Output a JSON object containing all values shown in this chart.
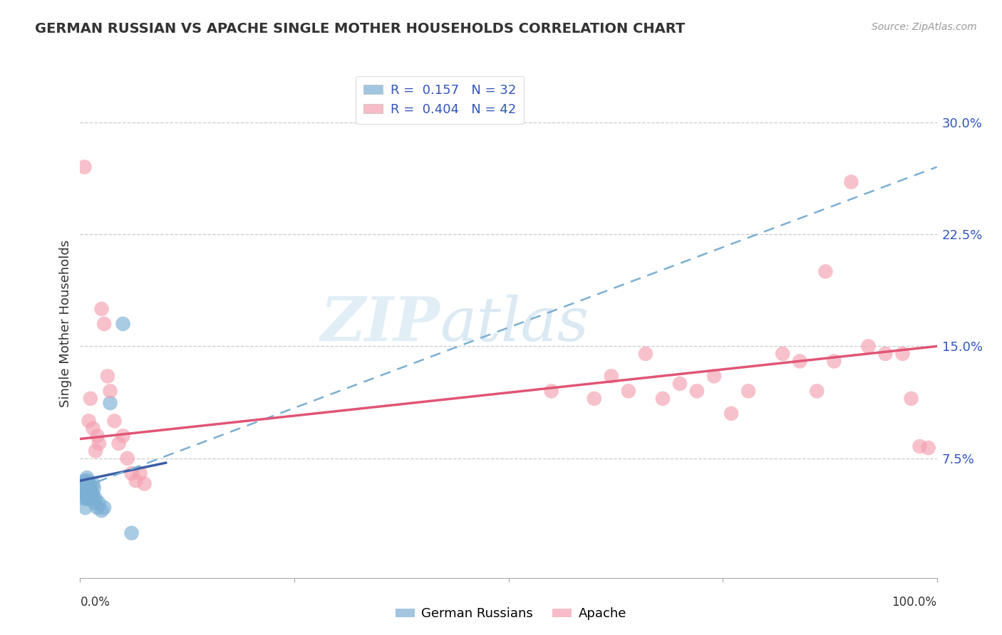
{
  "title": "GERMAN RUSSIAN VS APACHE SINGLE MOTHER HOUSEHOLDS CORRELATION CHART",
  "source": "Source: ZipAtlas.com",
  "ylabel": "Single Mother Households",
  "legend_label1": "German Russians",
  "legend_label2": "Apache",
  "legend_r1": "R =  0.157",
  "legend_n1": "N = 32",
  "legend_r2": "R =  0.404",
  "legend_n2": "N = 42",
  "xlim": [
    0.0,
    1.0
  ],
  "ylim": [
    -0.005,
    0.335
  ],
  "yticks": [
    0.075,
    0.15,
    0.225,
    0.3
  ],
  "ytick_labels": [
    "7.5%",
    "15.0%",
    "22.5%",
    "30.0%"
  ],
  "background_color": "#ffffff",
  "grid_color": "#cccccc",
  "blue_color": "#7bafd4",
  "pink_color": "#f4a0b0",
  "blue_line_color": "#3b5ea6",
  "pink_line_color": "#e05575",
  "blue_scatter": [
    [
      0.002,
      0.058
    ],
    [
      0.003,
      0.052
    ],
    [
      0.004,
      0.055
    ],
    [
      0.005,
      0.06
    ],
    [
      0.005,
      0.048
    ],
    [
      0.006,
      0.055
    ],
    [
      0.006,
      0.042
    ],
    [
      0.007,
      0.058
    ],
    [
      0.007,
      0.05
    ],
    [
      0.008,
      0.062
    ],
    [
      0.008,
      0.048
    ],
    [
      0.009,
      0.06
    ],
    [
      0.009,
      0.052
    ],
    [
      0.01,
      0.055
    ],
    [
      0.01,
      0.048
    ],
    [
      0.011,
      0.058
    ],
    [
      0.011,
      0.05
    ],
    [
      0.012,
      0.055
    ],
    [
      0.013,
      0.048
    ],
    [
      0.014,
      0.052
    ],
    [
      0.015,
      0.058
    ],
    [
      0.015,
      0.05
    ],
    [
      0.016,
      0.055
    ],
    [
      0.017,
      0.045
    ],
    [
      0.018,
      0.048
    ],
    [
      0.02,
      0.042
    ],
    [
      0.022,
      0.045
    ],
    [
      0.025,
      0.04
    ],
    [
      0.028,
      0.042
    ],
    [
      0.035,
      0.112
    ],
    [
      0.05,
      0.165
    ],
    [
      0.06,
      0.025
    ]
  ],
  "pink_scatter": [
    [
      0.005,
      0.27
    ],
    [
      0.01,
      0.1
    ],
    [
      0.012,
      0.115
    ],
    [
      0.015,
      0.095
    ],
    [
      0.018,
      0.08
    ],
    [
      0.02,
      0.09
    ],
    [
      0.022,
      0.085
    ],
    [
      0.025,
      0.175
    ],
    [
      0.028,
      0.165
    ],
    [
      0.032,
      0.13
    ],
    [
      0.035,
      0.12
    ],
    [
      0.04,
      0.1
    ],
    [
      0.045,
      0.085
    ],
    [
      0.05,
      0.09
    ],
    [
      0.055,
      0.075
    ],
    [
      0.06,
      0.065
    ],
    [
      0.065,
      0.06
    ],
    [
      0.07,
      0.065
    ],
    [
      0.075,
      0.058
    ],
    [
      0.55,
      0.12
    ],
    [
      0.6,
      0.115
    ],
    [
      0.62,
      0.13
    ],
    [
      0.64,
      0.12
    ],
    [
      0.66,
      0.145
    ],
    [
      0.68,
      0.115
    ],
    [
      0.7,
      0.125
    ],
    [
      0.72,
      0.12
    ],
    [
      0.74,
      0.13
    ],
    [
      0.76,
      0.105
    ],
    [
      0.78,
      0.12
    ],
    [
      0.82,
      0.145
    ],
    [
      0.84,
      0.14
    ],
    [
      0.86,
      0.12
    ],
    [
      0.87,
      0.2
    ],
    [
      0.88,
      0.14
    ],
    [
      0.9,
      0.26
    ],
    [
      0.92,
      0.15
    ],
    [
      0.94,
      0.145
    ],
    [
      0.96,
      0.145
    ],
    [
      0.97,
      0.115
    ],
    [
      0.98,
      0.083
    ],
    [
      0.99,
      0.082
    ]
  ],
  "blue_trendline": [
    [
      0.0,
      0.06
    ],
    [
      0.1,
      0.072
    ]
  ],
  "blue_dash_trendline": [
    [
      0.0,
      0.055
    ],
    [
      1.0,
      0.27
    ]
  ],
  "pink_trendline": [
    [
      0.0,
      0.088
    ],
    [
      1.0,
      0.15
    ]
  ]
}
